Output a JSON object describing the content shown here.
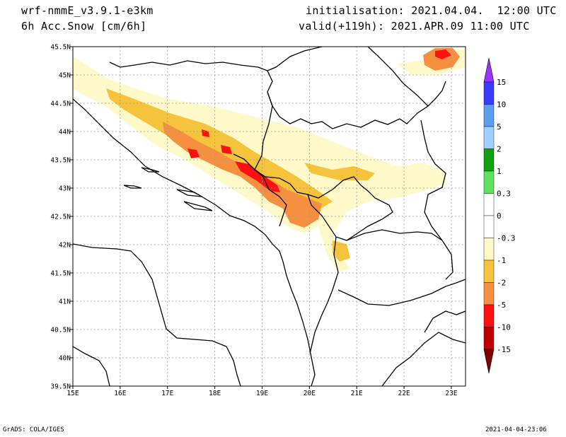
{
  "header": {
    "model": "wrf-nmmE_v3.9.1-e3km",
    "field": "6h Acc.Snow [cm/6h]",
    "init": "initialisation: 2021.04.04.  12:00 UTC",
    "valid": "valid(+119h): 2021.APR.09 11:00 UTC"
  },
  "footer": {
    "left": "GrADS: COLA/IGES",
    "right": "2021-04-04-23:06"
  },
  "map": {
    "lon_range": [
      15,
      23.3
    ],
    "lat_range": [
      39.5,
      45.5
    ],
    "lon_ticks": [
      "15E",
      "16E",
      "17E",
      "18E",
      "19E",
      "20E",
      "21E",
      "22E",
      "23E"
    ],
    "lat_ticks": [
      "39.5N",
      "40N",
      "40.5N",
      "41N",
      "41.5N",
      "42N",
      "42.5N",
      "43N",
      "43.5N",
      "44N",
      "44.5N",
      "45N",
      "45.5N"
    ],
    "gridlines": true
  },
  "colorbar": {
    "labels": [
      "15",
      "10",
      "5",
      "2",
      "1",
      "0.3",
      "0",
      "-0.3",
      "-1",
      "-2",
      "-5",
      "-10",
      "-15"
    ],
    "colors": [
      "#3b3bff",
      "#5a9ef0",
      "#a0d0ff",
      "#10a010",
      "#60e060",
      "#ffffff",
      "#ffffff",
      "#fff8c8",
      "#f5c43c",
      "#f59040",
      "#ff1010",
      "#c00000"
    ],
    "top_arrow_color": "#9933ff",
    "bottom_arrow_color": "#800000"
  }
}
